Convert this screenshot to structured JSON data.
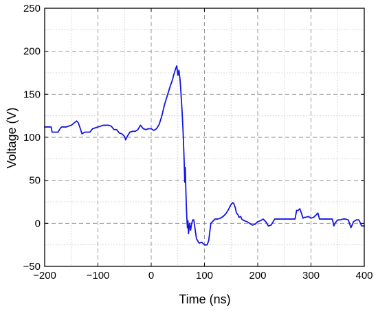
{
  "chart_data": {
    "type": "line",
    "title": "",
    "xlabel": "Time (ns)",
    "ylabel": "Voltage (V)",
    "xlim": [
      -200,
      400
    ],
    "ylim": [
      -50,
      250
    ],
    "grid": true,
    "legend": "none",
    "x_ticks": [
      -200,
      -100,
      0,
      100,
      200,
      300,
      400
    ],
    "x_tick_labels": [
      "−200",
      "−100",
      "0",
      "100",
      "200",
      "300",
      "400"
    ],
    "y_ticks": [
      -50,
      0,
      50,
      100,
      150,
      200,
      250
    ],
    "y_tick_labels": [
      "−50",
      "0",
      "50",
      "100",
      "150",
      "200",
      "250"
    ],
    "colors": {
      "series": "#1515e6",
      "frame": "#000000",
      "major_grid": "#8c8c8c",
      "minor_grid": "#d0d0d0"
    },
    "series": [
      {
        "x": [
          -200,
          -188,
          -186,
          -182,
          -175,
          -170,
          -168,
          -160,
          -150,
          -140,
          -137,
          -133,
          -130,
          -125,
          -120,
          -115,
          -110,
          -100,
          -90,
          -80,
          -75,
          -70,
          -65,
          -60,
          -55,
          -50,
          -48,
          -45,
          -40,
          -35,
          -30,
          -25,
          -20,
          -15,
          -10,
          -5,
          0,
          5,
          10,
          15,
          20,
          25,
          30,
          35,
          40,
          42,
          44,
          46,
          48,
          50,
          52,
          54,
          55,
          56,
          57,
          58,
          59,
          60,
          61,
          62,
          63,
          64,
          65,
          66,
          67,
          68,
          69,
          70,
          72,
          74,
          76,
          78,
          80,
          82,
          85,
          90,
          95,
          100,
          105,
          108,
          110,
          112,
          115,
          120,
          125,
          130,
          135,
          140,
          145,
          150,
          153,
          155,
          158,
          160,
          163,
          165,
          168,
          170,
          175,
          180,
          185,
          190,
          195,
          200,
          205,
          210,
          215,
          220,
          225,
          230,
          232,
          235,
          240,
          245,
          250,
          255,
          260,
          265,
          270,
          273,
          276,
          279,
          282,
          285,
          288,
          290,
          295,
          300,
          305,
          310,
          313,
          316,
          320,
          330,
          340,
          343,
          345,
          350,
          355,
          360,
          365,
          370,
          375,
          380,
          385,
          390,
          395,
          400
        ],
        "y": [
          112,
          112,
          106,
          106,
          106,
          111,
          112,
          112,
          114,
          119,
          117,
          110,
          104,
          106,
          106,
          106,
          110,
          112,
          114,
          114,
          113,
          109,
          109,
          105,
          104,
          101,
          97,
          101,
          106,
          107,
          107,
          109,
          114,
          110,
          109,
          110,
          110,
          108,
          110,
          115,
          125,
          138,
          148,
          158,
          167,
          172,
          176,
          180,
          183,
          172,
          178,
          168,
          160,
          150,
          140,
          130,
          118,
          105,
          88,
          70,
          48,
          65,
          40,
          20,
          5,
          -5,
          3,
          -12,
          0,
          -8,
          0,
          4,
          4,
          -5,
          -18,
          -23,
          -22,
          -25,
          -25,
          -20,
          -10,
          0,
          2,
          5,
          5,
          6,
          8,
          11,
          16,
          22,
          24,
          23,
          18,
          12,
          10,
          7,
          8,
          5,
          3,
          2,
          0,
          -2,
          -1,
          2,
          3,
          5,
          2,
          -3,
          -2,
          3,
          5,
          5,
          5,
          5,
          5,
          5,
          5,
          5,
          5,
          15,
          15,
          17,
          12,
          6,
          7,
          7,
          8,
          6,
          7,
          10,
          12,
          5,
          5,
          5,
          5,
          -3,
          0,
          4,
          4,
          5,
          5,
          4,
          -5,
          2,
          4,
          4,
          -3,
          -3
        ]
      }
    ]
  }
}
